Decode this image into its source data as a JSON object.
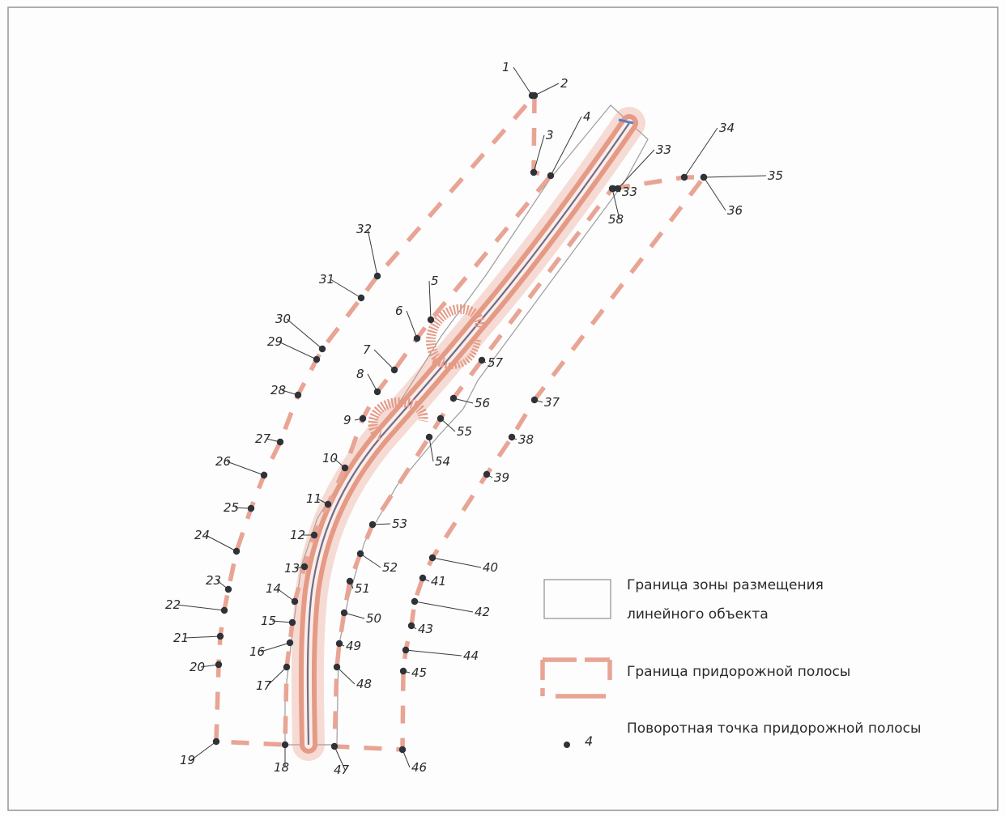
{
  "colors": {
    "background": "#fdfdfd",
    "frame": "#9a9a9a",
    "roadside_strip_boundary": "#e8a494",
    "road_embankment": "#e59a86",
    "road_axis": "#6f6c8c",
    "corridor_boundary": "#9d9d9d",
    "point": "#2f3238",
    "leader": "#3a3a3a"
  },
  "points": [
    "1",
    "2",
    "3",
    "4",
    "5",
    "6",
    "7",
    "8",
    "9",
    "10",
    "11",
    "12",
    "13",
    "14",
    "15",
    "16",
    "17",
    "18",
    "19",
    "20",
    "21",
    "22",
    "23",
    "24",
    "25",
    "26",
    "27",
    "28",
    "29",
    "30",
    "31",
    "32",
    "33",
    "33",
    "34",
    "35",
    "36",
    "37",
    "38",
    "39",
    "40",
    "41",
    "42",
    "43",
    "44",
    "45",
    "46",
    "47",
    "48",
    "49",
    "50",
    "51",
    "52",
    "53",
    "54",
    "55",
    "56",
    "57",
    "58"
  ],
  "legend": {
    "corridor_label_line1": "Граница зоны размещения",
    "corridor_label_line2": "линейного объекта",
    "strip_label": "Граница придорожной полосы",
    "point_label": "Поворотная точка придорожной полосы",
    "point_example_number": "4"
  }
}
